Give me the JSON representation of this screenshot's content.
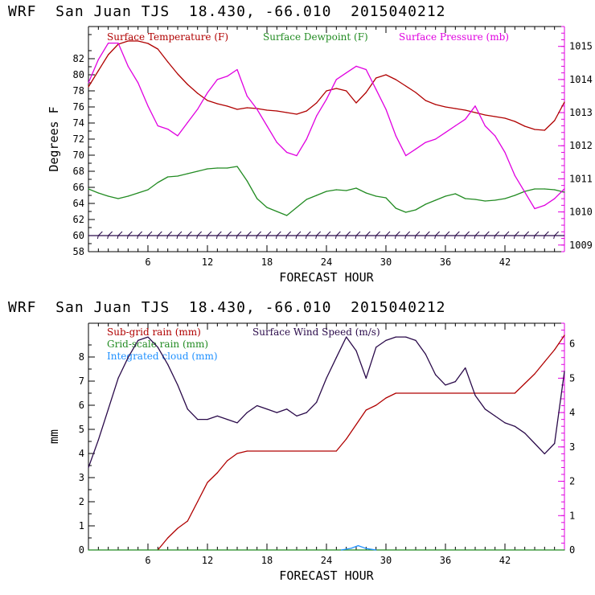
{
  "titles": {
    "top": "WRF  San Juan TJS  18.430, -66.010  2015040212",
    "bottom": "WRF  San Juan TJS  18.430, -66.010  2015040212"
  },
  "colors": {
    "temperature": "#b00000",
    "dewpoint": "#228b22",
    "pressure": "#e000e0",
    "subgrid_rain": "#b00000",
    "gridscale_rain": "#228b22",
    "cloud": "#1e90ff",
    "wind": "#2a0a4a"
  },
  "chart_data": [
    {
      "type": "line",
      "xlabel": "FORECAST HOUR",
      "ylabel": "Degrees F",
      "xlim": [
        0,
        48
      ],
      "ylim": [
        58,
        86
      ],
      "y2lim": [
        1008.8,
        1015.6
      ],
      "xticks": [
        "6",
        "12",
        "18",
        "24",
        "30",
        "36",
        "42"
      ],
      "xtick_values": [
        6,
        12,
        18,
        24,
        30,
        36,
        42
      ],
      "yticks": [
        "58",
        "60",
        "62",
        "64",
        "66",
        "68",
        "70",
        "72",
        "74",
        "76",
        "78",
        "80",
        "82"
      ],
      "ytick_values": [
        58,
        60,
        62,
        64,
        66,
        68,
        70,
        72,
        74,
        76,
        78,
        80,
        82
      ],
      "y2ticks": [
        "1009",
        "1010",
        "1011",
        "1012",
        "1013",
        "1014",
        "1015"
      ],
      "y2tick_values": [
        1009,
        1010,
        1011,
        1012,
        1013,
        1014,
        1015
      ],
      "legend": [
        "Surface Temperature (F)",
        "Surface Dewpoint (F)",
        "Surface Pressure (mb)"
      ],
      "wind_barb_y": 60,
      "series": [
        {
          "name": "Surface Temperature (F)",
          "axis": "left",
          "x": [
            0,
            1,
            2,
            3,
            4,
            5,
            6,
            7,
            8,
            9,
            10,
            11,
            12,
            13,
            14,
            15,
            16,
            17,
            18,
            19,
            20,
            21,
            22,
            23,
            24,
            25,
            26,
            27,
            28,
            29,
            30,
            31,
            32,
            33,
            34,
            35,
            36,
            37,
            38,
            39,
            40,
            41,
            42,
            43,
            44,
            45,
            46,
            47,
            48
          ],
          "values": [
            78.5,
            80.5,
            82.5,
            83.8,
            84.2,
            84.2,
            83.9,
            83.2,
            81.6,
            80.1,
            78.8,
            77.7,
            76.8,
            76.4,
            76.1,
            75.7,
            75.9,
            75.8,
            75.6,
            75.5,
            75.3,
            75.1,
            75.5,
            76.5,
            78.0,
            78.3,
            78.0,
            76.5,
            77.8,
            79.6,
            80.0,
            79.4,
            78.6,
            77.8,
            76.8,
            76.3,
            76.0,
            75.8,
            75.6,
            75.3,
            75.0,
            74.8,
            74.6,
            74.2,
            73.6,
            73.2,
            73.1,
            74.3,
            76.6
          ]
        },
        {
          "name": "Surface Dewpoint (F)",
          "axis": "left",
          "x": [
            0,
            1,
            2,
            3,
            4,
            5,
            6,
            7,
            8,
            9,
            10,
            11,
            12,
            13,
            14,
            15,
            16,
            17,
            18,
            19,
            20,
            21,
            22,
            23,
            24,
            25,
            26,
            27,
            28,
            29,
            30,
            31,
            32,
            33,
            34,
            35,
            36,
            37,
            38,
            39,
            40,
            41,
            42,
            43,
            44,
            45,
            46,
            47,
            48
          ],
          "values": [
            65.8,
            65.3,
            64.9,
            64.6,
            64.9,
            65.3,
            65.7,
            66.6,
            67.3,
            67.4,
            67.7,
            68.0,
            68.3,
            68.4,
            68.4,
            68.6,
            66.8,
            64.6,
            63.5,
            63.0,
            62.5,
            63.5,
            64.5,
            65.0,
            65.5,
            65.7,
            65.6,
            65.9,
            65.3,
            64.9,
            64.7,
            63.4,
            62.9,
            63.2,
            63.9,
            64.4,
            64.9,
            65.2,
            64.6,
            64.5,
            64.3,
            64.4,
            64.6,
            65.0,
            65.5,
            65.8,
            65.8,
            65.7,
            65.4
          ]
        },
        {
          "name": "Surface Pressure (mb)",
          "axis": "right",
          "x": [
            0,
            1,
            2,
            3,
            4,
            5,
            6,
            7,
            8,
            9,
            10,
            11,
            12,
            13,
            14,
            15,
            16,
            17,
            18,
            19,
            20,
            21,
            22,
            23,
            24,
            25,
            26,
            27,
            28,
            29,
            30,
            31,
            32,
            33,
            34,
            35,
            36,
            37,
            38,
            39,
            40,
            41,
            42,
            43,
            44,
            45,
            46,
            47,
            48
          ],
          "values": [
            1013.9,
            1014.6,
            1015.1,
            1015.1,
            1014.4,
            1013.9,
            1013.2,
            1012.6,
            1012.5,
            1012.3,
            1012.7,
            1013.1,
            1013.6,
            1014.0,
            1014.1,
            1014.3,
            1013.5,
            1013.1,
            1012.6,
            1012.1,
            1011.8,
            1011.7,
            1012.2,
            1012.9,
            1013.4,
            1014.0,
            1014.2,
            1014.4,
            1014.3,
            1013.7,
            1013.1,
            1012.3,
            1011.7,
            1011.9,
            1012.1,
            1012.2,
            1012.4,
            1012.6,
            1012.8,
            1013.2,
            1012.6,
            1012.3,
            1011.8,
            1011.1,
            1010.6,
            1010.1,
            1010.2,
            1010.4,
            1010.7
          ]
        }
      ]
    },
    {
      "type": "line",
      "xlabel": "FORECAST HOUR",
      "ylabel": "mm",
      "xlim": [
        0,
        48
      ],
      "ylim": [
        0,
        9.4
      ],
      "y2lim": [
        0,
        6.6
      ],
      "xticks": [
        "6",
        "12",
        "18",
        "24",
        "30",
        "36",
        "42"
      ],
      "xtick_values": [
        6,
        12,
        18,
        24,
        30,
        36,
        42
      ],
      "yticks": [
        "0",
        "1",
        "2",
        "3",
        "4",
        "5",
        "6",
        "7",
        "8"
      ],
      "ytick_values": [
        0,
        1,
        2,
        3,
        4,
        5,
        6,
        7,
        8
      ],
      "y2ticks": [
        "0",
        "1",
        "2",
        "3",
        "4",
        "5",
        "6"
      ],
      "y2tick_values": [
        0,
        1,
        2,
        3,
        4,
        5,
        6
      ],
      "legend": [
        "Sub-grid rain (mm)",
        "Grid-scale rain (mm)",
        "Integrated cloud (mm)",
        "Surface Wind Speed (m/s)"
      ],
      "series": [
        {
          "name": "Sub-grid rain (mm)",
          "axis": "left",
          "x": [
            7,
            8,
            9,
            10,
            11,
            12,
            13,
            14,
            15,
            16,
            25,
            26,
            27,
            28,
            29,
            30,
            31,
            43,
            44,
            45,
            46,
            47,
            48
          ],
          "values": [
            0,
            0.5,
            0.9,
            1.2,
            2.0,
            2.8,
            3.2,
            3.7,
            4.0,
            4.1,
            4.1,
            4.6,
            5.2,
            5.8,
            6.0,
            6.3,
            6.5,
            6.5,
            6.9,
            7.3,
            7.8,
            8.3,
            8.9
          ]
        },
        {
          "name": "Grid-scale rain (mm)",
          "axis": "left",
          "x": [
            0,
            48
          ],
          "values": [
            0,
            0
          ]
        },
        {
          "name": "Integrated cloud (mm)",
          "axis": "left",
          "x": [
            25.5,
            26.5,
            27.2,
            28,
            29
          ],
          "values": [
            0,
            0.07,
            0.18,
            0.06,
            0
          ]
        },
        {
          "name": "Surface Wind Speed (m/s)",
          "axis": "right",
          "x": [
            0,
            1,
            2,
            3,
            4,
            5,
            6,
            7,
            8,
            9,
            10,
            11,
            12,
            13,
            14,
            15,
            16,
            17,
            18,
            19,
            20,
            21,
            22,
            23,
            24,
            25,
            26,
            27,
            28,
            29,
            30,
            31,
            32,
            33,
            34,
            35,
            36,
            37,
            38,
            39,
            40,
            41,
            42,
            43,
            44,
            45,
            46,
            47,
            48
          ],
          "values": [
            2.4,
            3.2,
            4.1,
            5.0,
            5.6,
            6.1,
            6.2,
            5.9,
            5.4,
            4.8,
            4.1,
            3.8,
            3.8,
            3.9,
            3.8,
            3.7,
            4.0,
            4.2,
            4.1,
            4.0,
            4.1,
            3.9,
            4.0,
            4.3,
            5.0,
            5.6,
            6.2,
            5.8,
            5.0,
            5.9,
            6.1,
            6.2,
            6.2,
            6.1,
            5.7,
            5.1,
            4.8,
            4.9,
            5.3,
            4.5,
            4.1,
            3.9,
            3.7,
            3.6,
            3.4,
            3.1,
            2.8,
            3.1,
            5.2
          ]
        }
      ]
    }
  ]
}
